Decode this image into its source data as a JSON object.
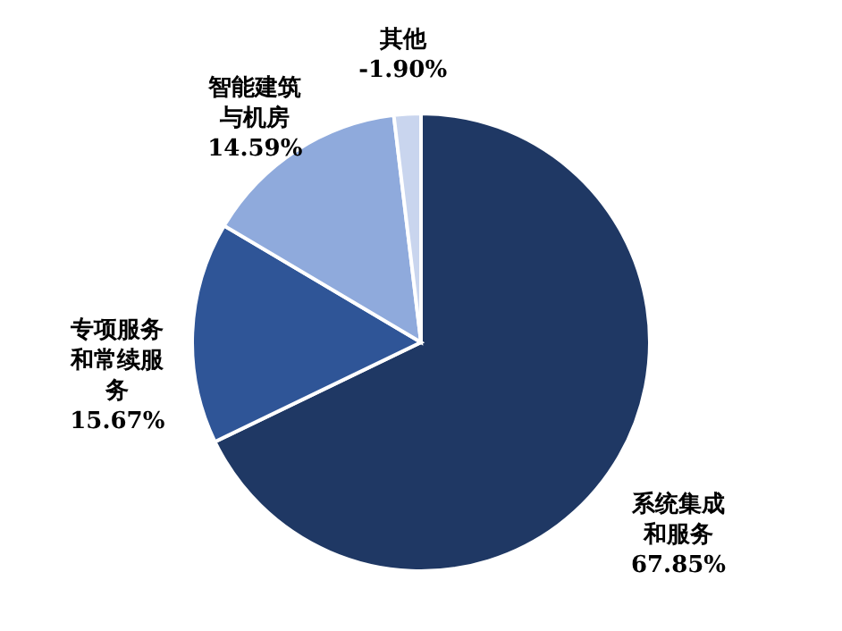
{
  "chart_data": {
    "type": "pie",
    "categories": [
      "系统集成和服务",
      "专项服务和常续服务",
      "智能建筑与机房",
      "其他"
    ],
    "values": [
      67.85,
      15.67,
      14.59,
      1.9
    ],
    "value_labels": [
      "67.85%",
      "15.67%",
      "14.59%",
      null
    ],
    "annotations": [
      "-1.90%"
    ],
    "colors": [
      "#1f3864",
      "#2f5597",
      "#8faadc",
      "#c9d5ee"
    ]
  }
}
